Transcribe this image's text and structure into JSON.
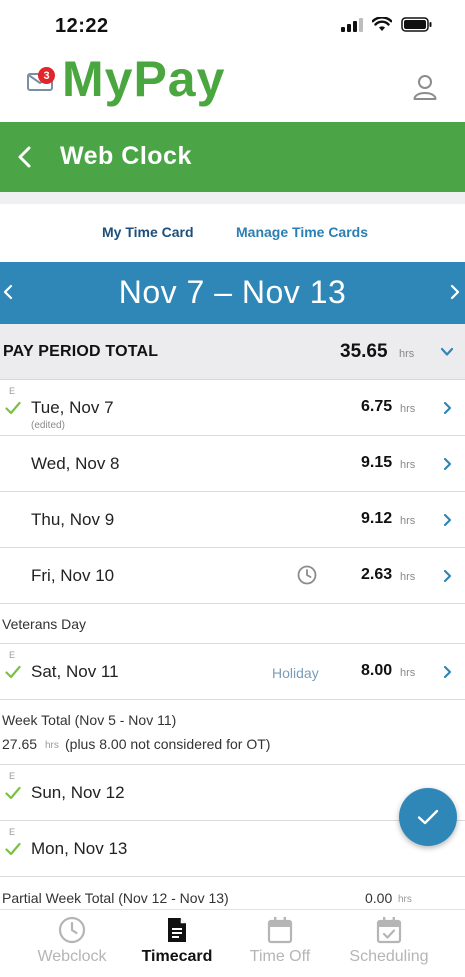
{
  "status_bar": {
    "time": "12:22"
  },
  "header": {
    "brand": "MyPay",
    "mail_badge_count": "3"
  },
  "nav_bar": {
    "title": "Web Clock"
  },
  "tabs": [
    {
      "label": "My Time Card",
      "active": true
    },
    {
      "label": "Manage Time Cards",
      "active": false
    }
  ],
  "week": {
    "label": "Nov 7 – Nov 13"
  },
  "pay_period": {
    "label": "PAY PERIOD TOTAL",
    "value": "35.65",
    "unit": "hrs"
  },
  "days": [
    {
      "marker": "E",
      "checked": true,
      "label": "Tue, Nov 7",
      "note": "(edited)",
      "hours": "6.75",
      "unit": "hrs"
    },
    {
      "marker": "",
      "checked": false,
      "label": "Wed, Nov 8",
      "note": "",
      "hours": "9.15",
      "unit": "hrs"
    },
    {
      "marker": "",
      "checked": false,
      "label": "Thu, Nov 9",
      "note": "",
      "hours": "9.12",
      "unit": "hrs"
    },
    {
      "marker": "",
      "checked": false,
      "label": "Fri, Nov 10",
      "note": "",
      "hours": "2.63",
      "unit": "hrs",
      "clock_icon": true
    },
    {
      "marker": "E",
      "checked": true,
      "label": "Sat, Nov 11",
      "note": "",
      "hours": "8.00",
      "unit": "hrs",
      "tag": "Holiday"
    },
    {
      "marker": "E",
      "checked": true,
      "label": "Sun, Nov 12",
      "note": ""
    },
    {
      "marker": "E",
      "checked": true,
      "label": "Mon, Nov 13",
      "note": ""
    }
  ],
  "holiday_banner": {
    "text": "Veterans Day"
  },
  "week_total": {
    "label": "Week Total (Nov 5 - Nov 11)",
    "value": "27.65",
    "unit": "hrs",
    "note": "(plus 8.00 not considered for OT)"
  },
  "partial_week_total": {
    "label": "Partial Week Total (Nov 12 - Nov 13)",
    "value": "0.00",
    "unit": "hrs"
  },
  "bottom_nav": [
    {
      "label": "Webclock",
      "icon": "clock-icon",
      "active": false
    },
    {
      "label": "Timecard",
      "icon": "document-icon",
      "active": true
    },
    {
      "label": "Time Off",
      "icon": "calendar-icon",
      "active": false
    },
    {
      "label": "Scheduling",
      "icon": "calendar-check-icon",
      "active": false
    }
  ],
  "colors": {
    "brand_green": "#4aa63f",
    "bar_green": "#4ba546",
    "accent_blue": "#2f87b8",
    "check_green": "#7ac142",
    "badge_red": "#e0252b"
  }
}
